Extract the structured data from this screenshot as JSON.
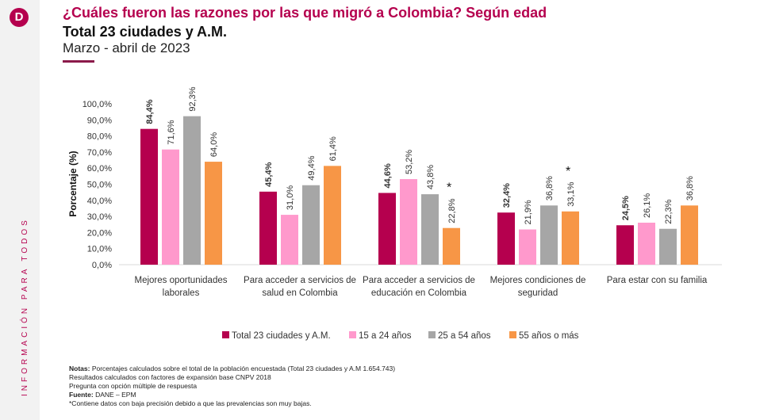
{
  "sidebar": {
    "vertical_text": "INFORMACIÓN PARA TODOS",
    "logo_letter": "D"
  },
  "header": {
    "title": "¿Cuáles fueron las razones por las que migró a Colombia? Según edad",
    "subtitle": "Total 23 ciudades y A.M.",
    "period": "Marzo - abril de 2023"
  },
  "chart_data": {
    "type": "bar",
    "ylabel": "Porcentaje (%)",
    "ylim": [
      0,
      100
    ],
    "yticks": [
      "0,0%",
      "10,0%",
      "20,0%",
      "30,0%",
      "40,0%",
      "50,0%",
      "60,0%",
      "70,0%",
      "80,0%",
      "90,0%",
      "100,0%"
    ],
    "categories": [
      [
        "Mejores oportunidades",
        "laborales"
      ],
      [
        "Para acceder a servicios de",
        "salud en Colombia"
      ],
      [
        "Para acceder a servicios de",
        "educación en Colombia"
      ],
      [
        "Mejores condiciones de",
        "seguridad"
      ],
      [
        "Para estar con su familia",
        ""
      ]
    ],
    "series": [
      {
        "name": "Total 23 ciudades y A.M.",
        "color": "#b5004e",
        "values": [
          84.4,
          45.4,
          44.6,
          32.4,
          24.5
        ],
        "labels": [
          "84,4%",
          "45,4%",
          "44,6%",
          "32,4%",
          "24,5%"
        ]
      },
      {
        "name": "15 a 24 años",
        "color": "#ff99cc",
        "values": [
          71.6,
          31.0,
          53.2,
          21.9,
          26.1
        ],
        "labels": [
          "71,6%",
          "31,0%",
          "53,2%",
          "21,9%",
          "26,1%"
        ]
      },
      {
        "name": "25 a 54 años",
        "color": "#a6a6a6",
        "values": [
          92.3,
          49.4,
          43.8,
          36.8,
          22.3
        ],
        "labels": [
          "92,3%",
          "49,4%",
          "43,8%",
          "36,8%",
          "22,3%"
        ]
      },
      {
        "name": "55 años o más",
        "color": "#f79646",
        "values": [
          64.0,
          61.4,
          22.8,
          33.1,
          36.8
        ],
        "labels": [
          "64,0%",
          "61,4%",
          "22,8%",
          "33,1%",
          "36,8%"
        ],
        "low_precision": [
          false,
          false,
          true,
          true,
          false
        ]
      }
    ],
    "legend": "bottom",
    "grid": false
  },
  "notes": {
    "notas_label": "Notas:",
    "notas_text": " Porcentajes calculados sobre el total de la población encuestada (Total 23 ciudades y A.M 1.654.743)",
    "line2": "Resultados calculados con factores de expansión base CNPV 2018",
    "line3": "Pregunta con opción múltiple de respuesta",
    "fuente_label": "Fuente:",
    "fuente_text": " DANE – EPM",
    "line5": "*Contiene datos con baja precisión debido a que las prevalencias son muy bajas."
  }
}
